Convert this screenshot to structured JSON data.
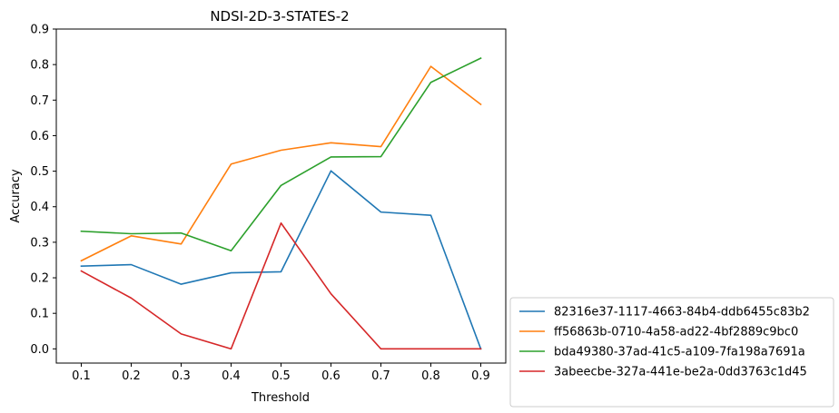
{
  "chart_data": {
    "type": "line",
    "title": "NDSI-2D-3-STATES-2",
    "xlabel": "Threshold",
    "ylabel": "Accuracy",
    "x": [
      0.1,
      0.2,
      0.3,
      0.4,
      0.5,
      0.6,
      0.7,
      0.8,
      0.9
    ],
    "x_ticks": [
      "0.1",
      "0.2",
      "0.3",
      "0.4",
      "0.5",
      "0.6",
      "0.7",
      "0.8",
      "0.9"
    ],
    "y_ticks": [
      "0.0",
      "0.1",
      "0.2",
      "0.3",
      "0.4",
      "0.5",
      "0.6",
      "0.7",
      "0.8",
      "0.9"
    ],
    "xlim": [
      0.05,
      0.95
    ],
    "ylim": [
      -0.04,
      0.9
    ],
    "grid": false,
    "legend_position": "outside-bottom-right",
    "series": [
      {
        "name": "82316e37-1117-4663-84b4-ddb6455c83b2",
        "color": "#1f77b4",
        "values": [
          0.233,
          0.237,
          0.182,
          0.214,
          0.217,
          0.501,
          0.385,
          0.376,
          0.0
        ]
      },
      {
        "name": "ff56863b-0710-4a58-ad22-4bf2889c9bc0",
        "color": "#ff7f0e",
        "values": [
          0.248,
          0.318,
          0.295,
          0.52,
          0.559,
          0.58,
          0.569,
          0.795,
          0.688
        ]
      },
      {
        "name": "bda49380-37ad-41c5-a109-7fa198a7691a",
        "color": "#2ca02c",
        "values": [
          0.331,
          0.324,
          0.326,
          0.276,
          0.46,
          0.54,
          0.541,
          0.75,
          0.818
        ]
      },
      {
        "name": "3abeecbe-327a-441e-be2a-0dd3763c1d45",
        "color": "#d62728",
        "values": [
          0.219,
          0.143,
          0.042,
          0.0,
          0.354,
          0.155,
          0.0,
          0.0,
          0.0
        ]
      }
    ]
  }
}
